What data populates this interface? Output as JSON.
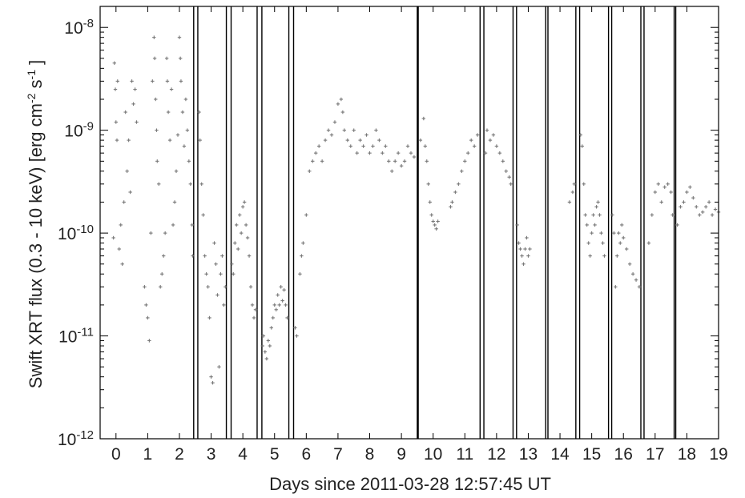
{
  "chart_data": {
    "type": "scatter",
    "title": "",
    "xlabel": "Days since 2011-03-28 12:57:45 UT",
    "ylabel_parts": {
      "prefix": "Swift XRT flux (0.3 - 10 keV) [erg cm",
      "exp1": "-2",
      "mid": " s",
      "exp2": "-1",
      "suffix": " ]"
    },
    "xlim": [
      -0.5,
      19
    ],
    "ylim": [
      1e-12,
      1.6e-08
    ],
    "y_scale": "log",
    "x_ticks": [
      0,
      1,
      2,
      3,
      4,
      5,
      6,
      7,
      8,
      9,
      10,
      11,
      12,
      13,
      14,
      15,
      16,
      17,
      18,
      19
    ],
    "y_ticks": [
      {
        "value": 1e-12,
        "base": "10",
        "exp": "-12"
      },
      {
        "value": 1e-11,
        "base": "10",
        "exp": "-11"
      },
      {
        "value": 1e-10,
        "base": "10",
        "exp": "-10"
      },
      {
        "value": 1e-09,
        "base": "10",
        "exp": "-9"
      },
      {
        "value": 1e-08,
        "base": "10",
        "exp": "-8"
      }
    ],
    "grid": false,
    "legend": "none",
    "marker_color": "#777777",
    "vertical_line_pairs": [
      [
        2.45,
        2.58
      ],
      [
        3.48,
        3.63
      ],
      [
        4.45,
        4.6
      ],
      [
        5.45,
        5.6
      ],
      [
        9.5,
        9.53
      ],
      [
        11.48,
        11.6
      ],
      [
        12.52,
        12.63
      ],
      [
        13.55,
        13.62
      ],
      [
        14.5,
        14.62
      ],
      [
        15.53,
        15.63
      ],
      [
        16.55,
        16.65
      ],
      [
        17.6,
        17.65
      ]
    ],
    "series": [
      {
        "values": [
          {
            "x": -0.05,
            "y": 4.5e-09
          },
          {
            "x": -0.02,
            "y": 2.5e-09
          },
          {
            "x": 0.0,
            "y": 1.2e-09
          },
          {
            "x": 0.03,
            "y": 8e-10
          },
          {
            "x": 0.05,
            "y": 3e-09
          },
          {
            "x": -0.08,
            "y": 9e-11
          },
          {
            "x": 0.1,
            "y": 7e-11
          },
          {
            "x": 0.15,
            "y": 1.2e-10
          },
          {
            "x": 0.2,
            "y": 5e-11
          },
          {
            "x": 0.25,
            "y": 2e-10
          },
          {
            "x": 0.3,
            "y": 1.5e-09
          },
          {
            "x": 0.35,
            "y": 4e-10
          },
          {
            "x": 0.4,
            "y": 8e-10
          },
          {
            "x": 0.45,
            "y": 2.5e-10
          },
          {
            "x": 0.5,
            "y": 3e-09
          },
          {
            "x": 0.55,
            "y": 1.8e-09
          },
          {
            "x": 0.6,
            "y": 2.5e-09
          },
          {
            "x": 0.65,
            "y": 1.2e-09
          },
          {
            "x": 0.9,
            "y": 3e-11
          },
          {
            "x": 0.95,
            "y": 2e-11
          },
          {
            "x": 1.0,
            "y": 1.5e-11
          },
          {
            "x": 1.05,
            "y": 9e-12
          },
          {
            "x": 1.1,
            "y": 1e-10
          },
          {
            "x": 1.15,
            "y": 3e-09
          },
          {
            "x": 1.2,
            "y": 8e-09
          },
          {
            "x": 1.22,
            "y": 5e-09
          },
          {
            "x": 1.25,
            "y": 2e-09
          },
          {
            "x": 1.28,
            "y": 1e-09
          },
          {
            "x": 1.3,
            "y": 5e-10
          },
          {
            "x": 1.35,
            "y": 3e-10
          },
          {
            "x": 1.4,
            "y": 3e-11
          },
          {
            "x": 1.45,
            "y": 4e-11
          },
          {
            "x": 1.5,
            "y": 6e-11
          },
          {
            "x": 1.55,
            "y": 1e-10
          },
          {
            "x": 1.6,
            "y": 5e-09
          },
          {
            "x": 1.62,
            "y": 3e-09
          },
          {
            "x": 1.65,
            "y": 1.5e-09
          },
          {
            "x": 1.7,
            "y": 8e-10
          },
          {
            "x": 1.75,
            "y": 2.5e-09
          },
          {
            "x": 1.8,
            "y": 1.2e-10
          },
          {
            "x": 1.85,
            "y": 2e-10
          },
          {
            "x": 1.9,
            "y": 4e-10
          },
          {
            "x": 1.95,
            "y": 9e-10
          },
          {
            "x": 2.0,
            "y": 8e-09
          },
          {
            "x": 2.03,
            "y": 5e-09
          },
          {
            "x": 2.05,
            "y": 3e-09
          },
          {
            "x": 2.1,
            "y": 1.5e-09
          },
          {
            "x": 2.15,
            "y": 7e-10
          },
          {
            "x": 2.2,
            "y": 2e-09
          },
          {
            "x": 2.25,
            "y": 1e-09
          },
          {
            "x": 2.3,
            "y": 5e-10
          },
          {
            "x": 2.35,
            "y": 3e-10
          },
          {
            "x": 2.4,
            "y": 1.2e-10
          },
          {
            "x": 2.42,
            "y": 6e-11
          },
          {
            "x": 2.62,
            "y": 1.5e-09
          },
          {
            "x": 2.65,
            "y": 8e-10
          },
          {
            "x": 2.7,
            "y": 3e-10
          },
          {
            "x": 2.75,
            "y": 1.5e-10
          },
          {
            "x": 2.8,
            "y": 6e-11
          },
          {
            "x": 2.85,
            "y": 4e-11
          },
          {
            "x": 2.9,
            "y": 3e-11
          },
          {
            "x": 2.95,
            "y": 1.5e-11
          },
          {
            "x": 3.0,
            "y": 4e-12
          },
          {
            "x": 3.05,
            "y": 3.5e-12
          },
          {
            "x": 3.1,
            "y": 8e-11
          },
          {
            "x": 3.15,
            "y": 5e-11
          },
          {
            "x": 3.2,
            "y": 2.5e-11
          },
          {
            "x": 3.25,
            "y": 5e-12
          },
          {
            "x": 3.3,
            "y": 4e-11
          },
          {
            "x": 3.35,
            "y": 6e-11
          },
          {
            "x": 3.4,
            "y": 2e-11
          },
          {
            "x": 3.45,
            "y": 3e-11
          },
          {
            "x": 3.65,
            "y": 5e-11
          },
          {
            "x": 3.7,
            "y": 4e-11
          },
          {
            "x": 3.75,
            "y": 8e-11
          },
          {
            "x": 3.8,
            "y": 1.2e-10
          },
          {
            "x": 3.85,
            "y": 7e-11
          },
          {
            "x": 3.9,
            "y": 1.5e-10
          },
          {
            "x": 3.95,
            "y": 1e-10
          },
          {
            "x": 4.0,
            "y": 1.8e-10
          },
          {
            "x": 4.05,
            "y": 2e-10
          },
          {
            "x": 4.1,
            "y": 1.2e-10
          },
          {
            "x": 4.15,
            "y": 9e-11
          },
          {
            "x": 4.2,
            "y": 6e-11
          },
          {
            "x": 4.25,
            "y": 3e-11
          },
          {
            "x": 4.3,
            "y": 2e-11
          },
          {
            "x": 4.35,
            "y": 1.5e-11
          },
          {
            "x": 4.4,
            "y": 1.8e-11
          },
          {
            "x": 4.62,
            "y": 8e-12
          },
          {
            "x": 4.65,
            "y": 1e-11
          },
          {
            "x": 4.7,
            "y": 7e-12
          },
          {
            "x": 4.75,
            "y": 6e-12
          },
          {
            "x": 4.8,
            "y": 9e-12
          },
          {
            "x": 4.85,
            "y": 8e-12
          },
          {
            "x": 4.9,
            "y": 1.2e-11
          },
          {
            "x": 4.95,
            "y": 1.5e-11
          },
          {
            "x": 5.0,
            "y": 2e-11
          },
          {
            "x": 5.05,
            "y": 1.8e-11
          },
          {
            "x": 5.1,
            "y": 2.5e-11
          },
          {
            "x": 5.15,
            "y": 2e-11
          },
          {
            "x": 5.2,
            "y": 3e-11
          },
          {
            "x": 5.25,
            "y": 2.2e-11
          },
          {
            "x": 5.3,
            "y": 2.8e-11
          },
          {
            "x": 5.35,
            "y": 2e-11
          },
          {
            "x": 5.4,
            "y": 1.5e-11
          },
          {
            "x": 5.65,
            "y": 1.2e-11
          },
          {
            "x": 5.7,
            "y": 1e-11
          },
          {
            "x": 5.8,
            "y": 4e-11
          },
          {
            "x": 5.85,
            "y": 6e-11
          },
          {
            "x": 5.9,
            "y": 8e-11
          },
          {
            "x": 6.0,
            "y": 1.5e-10
          },
          {
            "x": 6.1,
            "y": 4e-10
          },
          {
            "x": 6.2,
            "y": 5e-10
          },
          {
            "x": 6.3,
            "y": 6e-10
          },
          {
            "x": 6.4,
            "y": 7e-10
          },
          {
            "x": 6.5,
            "y": 5e-10
          },
          {
            "x": 6.6,
            "y": 8e-10
          },
          {
            "x": 6.7,
            "y": 1e-09
          },
          {
            "x": 6.8,
            "y": 9e-10
          },
          {
            "x": 6.9,
            "y": 1.2e-09
          },
          {
            "x": 7.0,
            "y": 1.8e-09
          },
          {
            "x": 7.1,
            "y": 2e-09
          },
          {
            "x": 7.15,
            "y": 1.5e-09
          },
          {
            "x": 7.2,
            "y": 1e-09
          },
          {
            "x": 7.3,
            "y": 8e-10
          },
          {
            "x": 7.4,
            "y": 7e-10
          },
          {
            "x": 7.5,
            "y": 1e-09
          },
          {
            "x": 7.6,
            "y": 6e-10
          },
          {
            "x": 7.7,
            "y": 8e-10
          },
          {
            "x": 7.8,
            "y": 7e-10
          },
          {
            "x": 7.9,
            "y": 9e-10
          },
          {
            "x": 8.0,
            "y": 6e-10
          },
          {
            "x": 8.1,
            "y": 7e-10
          },
          {
            "x": 8.2,
            "y": 1e-09
          },
          {
            "x": 8.3,
            "y": 8e-10
          },
          {
            "x": 8.4,
            "y": 6e-10
          },
          {
            "x": 8.5,
            "y": 7e-10
          },
          {
            "x": 8.6,
            "y": 5e-10
          },
          {
            "x": 8.7,
            "y": 4e-10
          },
          {
            "x": 8.8,
            "y": 5e-10
          },
          {
            "x": 8.9,
            "y": 6e-10
          },
          {
            "x": 9.0,
            "y": 4.5e-10
          },
          {
            "x": 9.1,
            "y": 5e-10
          },
          {
            "x": 9.2,
            "y": 7e-10
          },
          {
            "x": 9.3,
            "y": 6e-10
          },
          {
            "x": 9.4,
            "y": 5.5e-10
          },
          {
            "x": 9.6,
            "y": 8e-10
          },
          {
            "x": 9.7,
            "y": 1.3e-09
          },
          {
            "x": 9.75,
            "y": 7e-10
          },
          {
            "x": 9.8,
            "y": 5e-10
          },
          {
            "x": 9.85,
            "y": 3e-10
          },
          {
            "x": 9.9,
            "y": 2e-10
          },
          {
            "x": 9.95,
            "y": 1.5e-10
          },
          {
            "x": 10.0,
            "y": 1.3e-10
          },
          {
            "x": 10.05,
            "y": 1.2e-10
          },
          {
            "x": 10.1,
            "y": 1.1e-10
          },
          {
            "x": 10.15,
            "y": 1.3e-10
          },
          {
            "x": 10.55,
            "y": 1.8e-10
          },
          {
            "x": 10.6,
            "y": 2e-10
          },
          {
            "x": 10.7,
            "y": 2.5e-10
          },
          {
            "x": 10.8,
            "y": 3e-10
          },
          {
            "x": 10.9,
            "y": 4e-10
          },
          {
            "x": 11.0,
            "y": 5e-10
          },
          {
            "x": 11.1,
            "y": 6e-10
          },
          {
            "x": 11.2,
            "y": 8e-10
          },
          {
            "x": 11.3,
            "y": 7e-10
          },
          {
            "x": 11.4,
            "y": 9e-10
          },
          {
            "x": 11.65,
            "y": 6e-10
          },
          {
            "x": 11.7,
            "y": 1e-09
          },
          {
            "x": 11.8,
            "y": 8e-10
          },
          {
            "x": 11.9,
            "y": 9e-10
          },
          {
            "x": 12.0,
            "y": 7e-10
          },
          {
            "x": 12.1,
            "y": 6e-10
          },
          {
            "x": 12.2,
            "y": 5e-10
          },
          {
            "x": 12.3,
            "y": 4e-10
          },
          {
            "x": 12.4,
            "y": 3.5e-10
          },
          {
            "x": 12.45,
            "y": 3e-10
          },
          {
            "x": 12.65,
            "y": 1.2e-10
          },
          {
            "x": 12.7,
            "y": 8e-11
          },
          {
            "x": 12.75,
            "y": 7e-11
          },
          {
            "x": 12.8,
            "y": 6e-11
          },
          {
            "x": 12.85,
            "y": 5e-11
          },
          {
            "x": 12.9,
            "y": 7e-11
          },
          {
            "x": 12.95,
            "y": 9e-11
          },
          {
            "x": 13.0,
            "y": 6e-11
          },
          {
            "x": 13.05,
            "y": 7e-11
          },
          {
            "x": 14.3,
            "y": 2e-10
          },
          {
            "x": 14.4,
            "y": 2.5e-10
          },
          {
            "x": 14.45,
            "y": 3e-10
          },
          {
            "x": 14.65,
            "y": 9e-10
          },
          {
            "x": 14.7,
            "y": 7e-10
          },
          {
            "x": 14.75,
            "y": 3e-10
          },
          {
            "x": 14.8,
            "y": 1.5e-10
          },
          {
            "x": 14.85,
            "y": 1.2e-10
          },
          {
            "x": 14.9,
            "y": 8e-11
          },
          {
            "x": 14.95,
            "y": 6e-11
          },
          {
            "x": 15.0,
            "y": 1e-10
          },
          {
            "x": 15.05,
            "y": 1.5e-10
          },
          {
            "x": 15.1,
            "y": 1.2e-10
          },
          {
            "x": 15.15,
            "y": 1.8e-10
          },
          {
            "x": 15.2,
            "y": 2e-10
          },
          {
            "x": 15.25,
            "y": 1.5e-10
          },
          {
            "x": 15.3,
            "y": 1e-10
          },
          {
            "x": 15.35,
            "y": 8e-11
          },
          {
            "x": 15.4,
            "y": 6e-11
          },
          {
            "x": 15.65,
            "y": 1.5e-10
          },
          {
            "x": 15.7,
            "y": 1e-10
          },
          {
            "x": 15.75,
            "y": 3e-11
          },
          {
            "x": 15.8,
            "y": 6e-11
          },
          {
            "x": 15.85,
            "y": 1e-10
          },
          {
            "x": 15.9,
            "y": 8e-11
          },
          {
            "x": 15.95,
            "y": 1.2e-10
          },
          {
            "x": 16.0,
            "y": 9e-11
          },
          {
            "x": 16.1,
            "y": 7e-11
          },
          {
            "x": 16.2,
            "y": 5e-11
          },
          {
            "x": 16.3,
            "y": 4e-11
          },
          {
            "x": 16.4,
            "y": 3.5e-11
          },
          {
            "x": 16.5,
            "y": 3e-11
          },
          {
            "x": 16.8,
            "y": 8e-11
          },
          {
            "x": 16.9,
            "y": 1.5e-10
          },
          {
            "x": 17.0,
            "y": 2.5e-10
          },
          {
            "x": 17.1,
            "y": 3e-10
          },
          {
            "x": 17.2,
            "y": 2e-10
          },
          {
            "x": 17.3,
            "y": 2.8e-10
          },
          {
            "x": 17.4,
            "y": 3e-10
          },
          {
            "x": 17.5,
            "y": 2.5e-10
          },
          {
            "x": 17.55,
            "y": 1.5e-10
          },
          {
            "x": 17.7,
            "y": 1.2e-10
          },
          {
            "x": 17.8,
            "y": 1.8e-10
          },
          {
            "x": 17.9,
            "y": 2e-10
          },
          {
            "x": 18.0,
            "y": 2.5e-10
          },
          {
            "x": 18.1,
            "y": 2.8e-10
          },
          {
            "x": 18.2,
            "y": 2.2e-10
          },
          {
            "x": 18.3,
            "y": 1.8e-10
          },
          {
            "x": 18.4,
            "y": 1.5e-10
          },
          {
            "x": 18.5,
            "y": 1.6e-10
          },
          {
            "x": 18.6,
            "y": 1.8e-10
          },
          {
            "x": 18.7,
            "y": 2e-10
          },
          {
            "x": 18.8,
            "y": 1.5e-10
          },
          {
            "x": 18.9,
            "y": 1.7e-10
          },
          {
            "x": 19.0,
            "y": 1.6e-10
          }
        ]
      }
    ]
  }
}
